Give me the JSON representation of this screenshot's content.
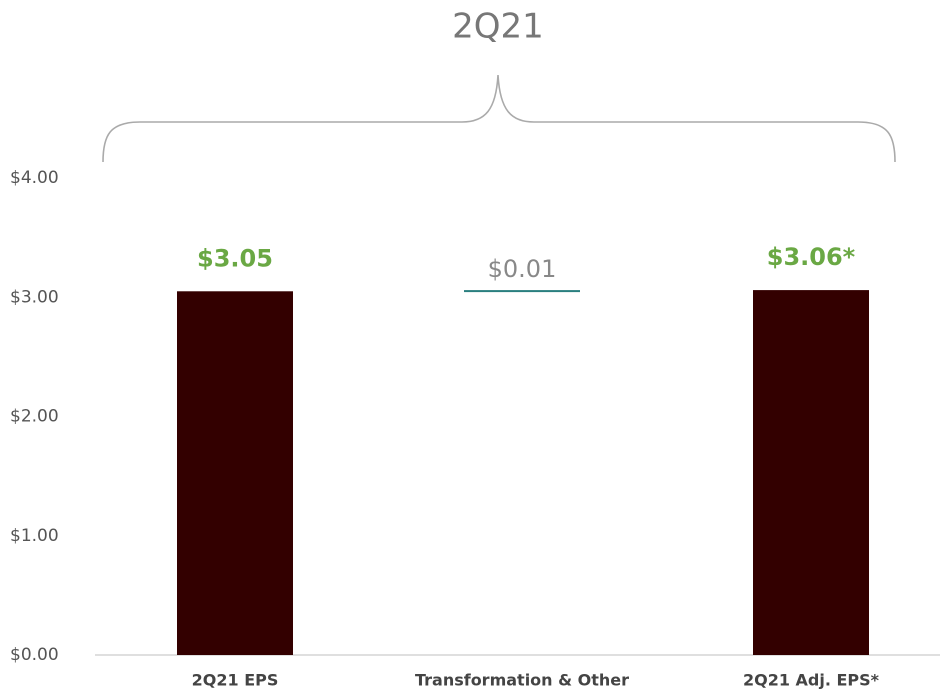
{
  "chart_data": {
    "type": "waterfall",
    "title": "2Q21",
    "categories": [
      "2Q21 EPS",
      "Transformation & Other",
      "2Q21 Adj. EPS*"
    ],
    "values": [
      3.05,
      0.01,
      3.06
    ],
    "value_labels": [
      "$3.05",
      "$0.01",
      "$3.06*"
    ],
    "colors": [
      "#330000",
      "#2a7f7f",
      "#330000"
    ],
    "ylim": [
      0,
      4
    ],
    "yticks": [
      {
        "value": 0,
        "label": "$0.00"
      },
      {
        "value": 1,
        "label": "$1.00"
      },
      {
        "value": 2,
        "label": "$2.00"
      },
      {
        "value": 3,
        "label": "$3.00"
      },
      {
        "value": 4,
        "label": "$4.00"
      }
    ]
  }
}
